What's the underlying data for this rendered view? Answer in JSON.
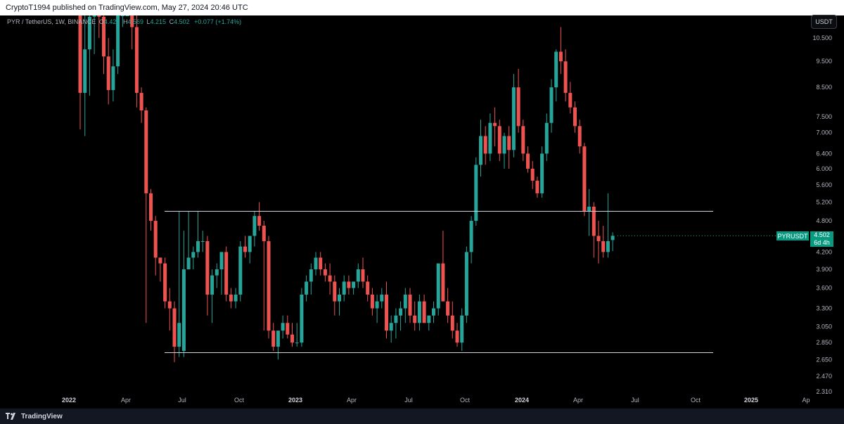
{
  "header": {
    "published_text": "CryptoT1994 published on TradingView.com, May 27, 2024 20:46 UTC"
  },
  "symbol_bar": {
    "title": "PYR / TetherUS, 1W, BINANCE",
    "o_label": "O",
    "o_value": "4.421",
    "h_label": "H",
    "h_value": "4.569",
    "l_label": "L",
    "l_value": "4.215",
    "c_label": "C",
    "c_value": "4.502",
    "change": "+0.077 (+1.74%)"
  },
  "currency_button": "USDT",
  "price_axis": {
    "ticks": [
      "10.500",
      "9.500",
      "8.500",
      "7.500",
      "7.000",
      "6.400",
      "6.000",
      "5.600",
      "5.200",
      "4.800",
      "4.200",
      "3.900",
      "3.600",
      "3.300",
      "3.050",
      "2.850",
      "2.650",
      "2.470",
      "2.310"
    ]
  },
  "time_axis": {
    "ticks": [
      {
        "label": "2022",
        "year": true
      },
      {
        "label": "Apr",
        "year": false
      },
      {
        "label": "Jul",
        "year": false
      },
      {
        "label": "Oct",
        "year": false
      },
      {
        "label": "2023",
        "year": true
      },
      {
        "label": "Apr",
        "year": false
      },
      {
        "label": "Jul",
        "year": false
      },
      {
        "label": "Oct",
        "year": false
      },
      {
        "label": "2024",
        "year": true
      },
      {
        "label": "Apr",
        "year": false
      },
      {
        "label": "Jul",
        "year": false
      },
      {
        "label": "Oct",
        "year": false
      },
      {
        "label": "2025",
        "year": true
      },
      {
        "label": "Ap",
        "year": false
      }
    ]
  },
  "last_price": {
    "pair_label": "PYRUSDT",
    "price": "4.502",
    "countdown": "6d 4h"
  },
  "colors": {
    "up": "#26a69a",
    "down": "#ef5350",
    "level_line": "#d1d4dc",
    "tag_bg": "#089981"
  },
  "footer": {
    "brand": "TradingView"
  },
  "chart_data": {
    "type": "candlestick",
    "interval": "1W",
    "scale": "log",
    "price_levels": [
      5.0,
      2.73
    ],
    "candles": [
      {
        "o": 14.0,
        "h": 14.5,
        "l": 7.1,
        "c": 8.3
      },
      {
        "o": 8.3,
        "h": 12.0,
        "l": 6.9,
        "c": 10.0
      },
      {
        "o": 10.0,
        "h": 13.5,
        "l": 8.2,
        "c": 11.5
      },
      {
        "o": 11.5,
        "h": 14.5,
        "l": 9.8,
        "c": 14.0
      },
      {
        "o": 12.5,
        "h": 14.0,
        "l": 10.5,
        "c": 11.5
      },
      {
        "o": 11.5,
        "h": 12.0,
        "l": 9.0,
        "c": 9.7
      },
      {
        "o": 9.7,
        "h": 10.5,
        "l": 7.9,
        "c": 8.4
      },
      {
        "o": 8.4,
        "h": 10.0,
        "l": 8.0,
        "c": 9.3
      },
      {
        "o": 9.3,
        "h": 13.5,
        "l": 9.0,
        "c": 12.0
      },
      {
        "o": 12.0,
        "h": 14.0,
        "l": 11.0,
        "c": 13.0
      },
      {
        "o": 13.0,
        "h": 14.5,
        "l": 12.0,
        "c": 14.0
      },
      {
        "o": 14.0,
        "h": 14.5,
        "l": 10.0,
        "c": 11.0
      },
      {
        "o": 11.0,
        "h": 12.0,
        "l": 7.8,
        "c": 8.3
      },
      {
        "o": 8.3,
        "h": 8.5,
        "l": 7.3,
        "c": 7.7
      },
      {
        "o": 7.7,
        "h": 7.8,
        "l": 3.1,
        "c": 5.4
      },
      {
        "o": 5.4,
        "h": 5.5,
        "l": 4.6,
        "c": 4.8
      },
      {
        "o": 4.8,
        "h": 4.9,
        "l": 3.8,
        "c": 4.1
      },
      {
        "o": 4.1,
        "h": 4.1,
        "l": 3.7,
        "c": 4.0
      },
      {
        "o": 4.0,
        "h": 4.1,
        "l": 3.3,
        "c": 3.4
      },
      {
        "o": 3.4,
        "h": 3.6,
        "l": 3.0,
        "c": 3.3
      },
      {
        "o": 3.3,
        "h": 3.4,
        "l": 2.62,
        "c": 2.8
      },
      {
        "o": 2.8,
        "h": 5.0,
        "l": 2.68,
        "c": 3.1
      },
      {
        "o": 2.75,
        "h": 4.6,
        "l": 2.68,
        "c": 3.9
      },
      {
        "o": 3.9,
        "h": 5.0,
        "l": 3.9,
        "c": 4.1
      },
      {
        "o": 4.1,
        "h": 4.3,
        "l": 3.9,
        "c": 4.2
      },
      {
        "o": 4.2,
        "h": 5.0,
        "l": 4.1,
        "c": 4.4
      },
      {
        "o": 4.4,
        "h": 4.6,
        "l": 4.2,
        "c": 4.4
      },
      {
        "o": 4.4,
        "h": 4.5,
        "l": 3.2,
        "c": 3.5
      },
      {
        "o": 3.5,
        "h": 3.9,
        "l": 3.1,
        "c": 3.8
      },
      {
        "o": 3.8,
        "h": 4.0,
        "l": 3.6,
        "c": 3.9
      },
      {
        "o": 3.9,
        "h": 4.2,
        "l": 3.5,
        "c": 4.2
      },
      {
        "o": 4.2,
        "h": 4.3,
        "l": 3.4,
        "c": 3.5
      },
      {
        "o": 3.5,
        "h": 3.6,
        "l": 3.3,
        "c": 3.4
      },
      {
        "o": 3.4,
        "h": 3.6,
        "l": 3.3,
        "c": 3.5
      },
      {
        "o": 3.5,
        "h": 4.4,
        "l": 3.4,
        "c": 4.3
      },
      {
        "o": 4.3,
        "h": 4.5,
        "l": 4.1,
        "c": 4.2
      },
      {
        "o": 4.2,
        "h": 4.5,
        "l": 4.0,
        "c": 4.5
      },
      {
        "o": 4.5,
        "h": 5.0,
        "l": 4.3,
        "c": 4.9
      },
      {
        "o": 4.9,
        "h": 5.2,
        "l": 4.6,
        "c": 4.7
      },
      {
        "o": 4.7,
        "h": 4.8,
        "l": 3.0,
        "c": 4.4
      },
      {
        "o": 4.4,
        "h": 4.5,
        "l": 2.9,
        "c": 3.0
      },
      {
        "o": 3.0,
        "h": 3.1,
        "l": 2.75,
        "c": 2.8
      },
      {
        "o": 2.8,
        "h": 3.0,
        "l": 2.65,
        "c": 3.0
      },
      {
        "o": 3.0,
        "h": 3.2,
        "l": 2.9,
        "c": 3.1
      },
      {
        "o": 3.1,
        "h": 3.2,
        "l": 2.9,
        "c": 2.95
      },
      {
        "o": 2.95,
        "h": 3.1,
        "l": 2.8,
        "c": 2.85
      },
      {
        "o": 2.85,
        "h": 3.1,
        "l": 2.8,
        "c": 2.85
      },
      {
        "o": 2.85,
        "h": 3.6,
        "l": 2.8,
        "c": 3.5
      },
      {
        "o": 3.5,
        "h": 3.8,
        "l": 3.4,
        "c": 3.7
      },
      {
        "o": 3.7,
        "h": 4.0,
        "l": 3.5,
        "c": 3.9
      },
      {
        "o": 3.9,
        "h": 4.2,
        "l": 3.8,
        "c": 4.1
      },
      {
        "o": 4.1,
        "h": 4.2,
        "l": 3.8,
        "c": 3.9
      },
      {
        "o": 3.9,
        "h": 4.0,
        "l": 3.7,
        "c": 3.8
      },
      {
        "o": 3.8,
        "h": 4.0,
        "l": 3.5,
        "c": 3.7
      },
      {
        "o": 3.7,
        "h": 3.8,
        "l": 3.2,
        "c": 3.4
      },
      {
        "o": 3.4,
        "h": 3.6,
        "l": 3.2,
        "c": 3.5
      },
      {
        "o": 3.5,
        "h": 3.8,
        "l": 3.4,
        "c": 3.7
      },
      {
        "o": 3.7,
        "h": 3.8,
        "l": 3.5,
        "c": 3.6
      },
      {
        "o": 3.6,
        "h": 3.7,
        "l": 3.5,
        "c": 3.7
      },
      {
        "o": 3.7,
        "h": 4.0,
        "l": 3.6,
        "c": 3.9
      },
      {
        "o": 3.9,
        "h": 4.1,
        "l": 3.6,
        "c": 3.7
      },
      {
        "o": 3.7,
        "h": 3.8,
        "l": 3.4,
        "c": 3.5
      },
      {
        "o": 3.5,
        "h": 3.6,
        "l": 3.2,
        "c": 3.3
      },
      {
        "o": 3.3,
        "h": 3.5,
        "l": 3.1,
        "c": 3.4
      },
      {
        "o": 3.4,
        "h": 3.6,
        "l": 3.3,
        "c": 3.5
      },
      {
        "o": 3.5,
        "h": 3.7,
        "l": 2.9,
        "c": 3.0
      },
      {
        "o": 3.0,
        "h": 3.2,
        "l": 2.85,
        "c": 3.1
      },
      {
        "o": 3.1,
        "h": 3.3,
        "l": 2.9,
        "c": 3.2
      },
      {
        "o": 3.2,
        "h": 3.4,
        "l": 3.0,
        "c": 3.3
      },
      {
        "o": 3.3,
        "h": 3.6,
        "l": 3.1,
        "c": 3.5
      },
      {
        "o": 3.5,
        "h": 3.6,
        "l": 3.1,
        "c": 3.2
      },
      {
        "o": 3.2,
        "h": 3.4,
        "l": 3.0,
        "c": 3.1
      },
      {
        "o": 3.1,
        "h": 3.5,
        "l": 3.0,
        "c": 3.4
      },
      {
        "o": 3.4,
        "h": 3.5,
        "l": 3.1,
        "c": 3.1
      },
      {
        "o": 3.1,
        "h": 3.2,
        "l": 3.0,
        "c": 3.2
      },
      {
        "o": 3.2,
        "h": 3.4,
        "l": 3.1,
        "c": 3.3
      },
      {
        "o": 3.3,
        "h": 4.0,
        "l": 3.2,
        "c": 4.0
      },
      {
        "o": 4.0,
        "h": 4.6,
        "l": 3.4,
        "c": 3.4
      },
      {
        "o": 3.4,
        "h": 3.6,
        "l": 3.1,
        "c": 3.2
      },
      {
        "o": 3.2,
        "h": 3.4,
        "l": 2.9,
        "c": 3.0
      },
      {
        "o": 3.0,
        "h": 3.1,
        "l": 2.8,
        "c": 2.85
      },
      {
        "o": 2.85,
        "h": 3.3,
        "l": 2.75,
        "c": 3.2
      },
      {
        "o": 3.2,
        "h": 4.3,
        "l": 3.1,
        "c": 4.2
      },
      {
        "o": 4.2,
        "h": 4.9,
        "l": 4.0,
        "c": 4.8
      },
      {
        "o": 4.8,
        "h": 6.3,
        "l": 4.7,
        "c": 6.1
      },
      {
        "o": 6.1,
        "h": 7.4,
        "l": 5.8,
        "c": 6.9
      },
      {
        "o": 6.9,
        "h": 7.2,
        "l": 6.1,
        "c": 6.4
      },
      {
        "o": 6.4,
        "h": 7.6,
        "l": 6.2,
        "c": 7.3
      },
      {
        "o": 7.3,
        "h": 7.8,
        "l": 6.6,
        "c": 7.2
      },
      {
        "o": 7.2,
        "h": 7.4,
        "l": 6.2,
        "c": 6.4
      },
      {
        "o": 6.4,
        "h": 7.0,
        "l": 6.0,
        "c": 6.9
      },
      {
        "o": 6.9,
        "h": 7.2,
        "l": 6.0,
        "c": 6.5
      },
      {
        "o": 6.5,
        "h": 9.0,
        "l": 6.3,
        "c": 8.5
      },
      {
        "o": 8.5,
        "h": 9.2,
        "l": 7.0,
        "c": 7.2
      },
      {
        "o": 7.2,
        "h": 7.4,
        "l": 6.2,
        "c": 6.4
      },
      {
        "o": 6.4,
        "h": 6.6,
        "l": 5.9,
        "c": 6.0
      },
      {
        "o": 6.0,
        "h": 6.2,
        "l": 5.5,
        "c": 5.7
      },
      {
        "o": 5.7,
        "h": 5.8,
        "l": 5.3,
        "c": 5.4
      },
      {
        "o": 5.4,
        "h": 6.6,
        "l": 5.3,
        "c": 6.4
      },
      {
        "o": 6.4,
        "h": 7.6,
        "l": 6.2,
        "c": 7.3
      },
      {
        "o": 7.3,
        "h": 8.8,
        "l": 7.0,
        "c": 8.5
      },
      {
        "o": 8.5,
        "h": 10.0,
        "l": 8.0,
        "c": 9.9
      },
      {
        "o": 9.9,
        "h": 11.0,
        "l": 9.0,
        "c": 9.5
      },
      {
        "o": 9.5,
        "h": 10.0,
        "l": 8.0,
        "c": 8.3
      },
      {
        "o": 8.3,
        "h": 8.7,
        "l": 7.6,
        "c": 7.8
      },
      {
        "o": 7.8,
        "h": 8.0,
        "l": 7.0,
        "c": 7.2
      },
      {
        "o": 7.2,
        "h": 7.4,
        "l": 6.4,
        "c": 6.6
      },
      {
        "o": 6.6,
        "h": 6.7,
        "l": 4.9,
        "c": 5.0
      },
      {
        "o": 5.0,
        "h": 5.5,
        "l": 4.5,
        "c": 5.1
      },
      {
        "o": 5.1,
        "h": 5.2,
        "l": 4.1,
        "c": 4.5
      },
      {
        "o": 4.5,
        "h": 4.8,
        "l": 4.0,
        "c": 4.4
      },
      {
        "o": 4.4,
        "h": 4.7,
        "l": 4.1,
        "c": 4.2
      },
      {
        "o": 4.2,
        "h": 5.4,
        "l": 4.1,
        "c": 4.4
      },
      {
        "o": 4.421,
        "h": 4.569,
        "l": 4.215,
        "c": 4.502
      }
    ]
  }
}
